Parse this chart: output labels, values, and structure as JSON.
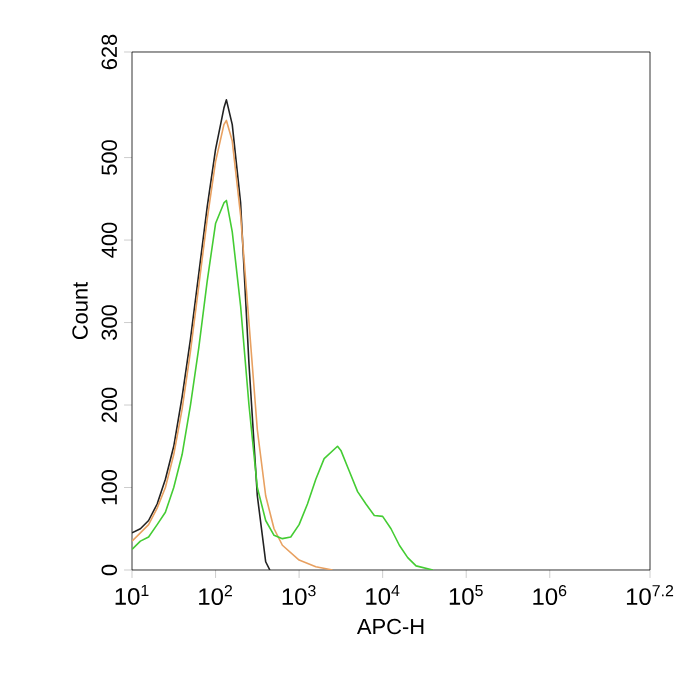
{
  "chart_data": {
    "type": "line",
    "xlabel": "APC-H",
    "ylabel": "Count",
    "log": "x",
    "xlim": [
      10,
      15848932
    ],
    "ylim": [
      0,
      628
    ],
    "xticks": [
      {
        "value": 10,
        "label": "10$^{1}$"
      },
      {
        "value": 100,
        "label": "10$^{2}$"
      },
      {
        "value": 1000,
        "label": "10$^{3}$"
      },
      {
        "value": 10000,
        "label": "10$^{4}$"
      },
      {
        "value": 100000,
        "label": "10$^{5}$"
      },
      {
        "value": 1000000,
        "label": "10$^{6}$"
      },
      {
        "value": 15848932,
        "label": "10$^{7.2}$"
      }
    ],
    "yticks": [
      0,
      100,
      200,
      300,
      400,
      500,
      628
    ],
    "series": [
      {
        "color": "#222222",
        "x": [
          10,
          12.6,
          15.8,
          20,
          25.1,
          31.6,
          39.8,
          50.1,
          63.1,
          79.4,
          100,
          125.9,
          134.9,
          158.5,
          199.5,
          251.2,
          316.2,
          398.1,
          446.7
        ],
        "values": [
          45,
          50,
          60,
          80,
          110,
          150,
          210,
          280,
          360,
          440,
          510,
          560,
          570,
          540,
          445,
          250,
          90,
          10,
          0
        ]
      },
      {
        "color": "#e8a060",
        "x": [
          10,
          12.6,
          15.8,
          20,
          25.1,
          31.6,
          39.8,
          50.1,
          63.1,
          79.4,
          100,
          125.9,
          134.9,
          158.5,
          199.5,
          251.2,
          316.2,
          398.1,
          501.2,
          631,
          1000,
          1585,
          2512
        ],
        "values": [
          35,
          45,
          55,
          75,
          100,
          140,
          195,
          265,
          345,
          425,
          495,
          540,
          545,
          520,
          430,
          300,
          170,
          90,
          50,
          30,
          12,
          4,
          0
        ]
      },
      {
        "color": "#44cc33",
        "x": [
          10,
          12.6,
          15.8,
          20,
          25.1,
          31.6,
          39.8,
          50.1,
          63.1,
          79.4,
          100,
          125.9,
          134.9,
          158.5,
          199.5,
          251.2,
          316.2,
          398.1,
          501.2,
          631,
          794.3,
          1000,
          1259,
          1585,
          1995,
          2884,
          3162,
          3981,
          5012,
          6310,
          7943,
          10000,
          12589,
          15849,
          19953,
          25119,
          39811
        ],
        "values": [
          25,
          35,
          40,
          55,
          70,
          100,
          140,
          200,
          270,
          350,
          420,
          445,
          448,
          410,
          320,
          200,
          100,
          60,
          42,
          38,
          40,
          55,
          80,
          110,
          135,
          150,
          145,
          120,
          95,
          80,
          66,
          65,
          50,
          30,
          15,
          5,
          0
        ]
      }
    ]
  }
}
